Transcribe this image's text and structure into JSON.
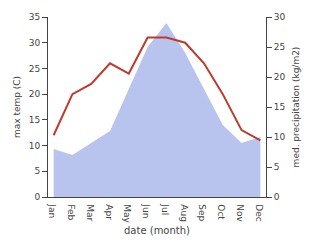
{
  "chart_data": {
    "type": "line",
    "categories": [
      "Jan",
      "Feb",
      "Mar",
      "Apr",
      "May",
      "Jun",
      "Jul",
      "Aug",
      "Sep",
      "Oct",
      "Nov",
      "Dec"
    ],
    "xlabel": "date (month)",
    "ylabel": "max temp (C)",
    "y2label": "med. precipitation (kg/m2)",
    "series": [
      {
        "type": "area",
        "color": "#b8c4ee",
        "axis": "y2",
        "values": [
          8,
          7,
          9,
          11,
          18,
          25,
          29,
          24,
          18,
          12,
          9,
          10
        ]
      },
      {
        "type": "line",
        "color": "#c0392b",
        "values": [
          12,
          20,
          22,
          26,
          24,
          31,
          31,
          30,
          26,
          20,
          13,
          11
        ]
      }
    ],
    "ylim": [
      0,
      35
    ],
    "yticks": [
      0,
      5,
      10,
      15,
      20,
      25,
      30,
      35
    ],
    "y2lim": [
      0,
      30
    ],
    "y2ticks": [
      0,
      5,
      10,
      15,
      20,
      25,
      30
    ],
    "grid": false
  }
}
